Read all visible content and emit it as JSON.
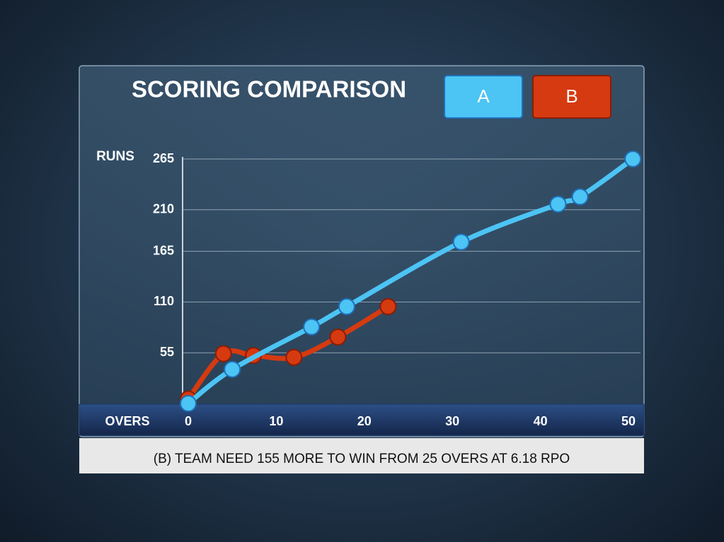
{
  "chart_data": {
    "type": "line",
    "title": "SCORING COMPARISON",
    "y_label": "RUNS",
    "x_label": "OVERS",
    "series": [
      {
        "name": "A",
        "color": "#4cc4f4",
        "x": [
          0,
          5,
          14,
          18,
          31,
          42,
          44.5,
          50.5
        ],
        "values": [
          0,
          37,
          83,
          105,
          175,
          216,
          224,
          265
        ]
      },
      {
        "name": "B",
        "color": "#d63a10",
        "x": [
          0,
          4,
          7.4,
          12,
          17,
          22.7
        ],
        "values": [
          5,
          54,
          52,
          50,
          72,
          105
        ]
      }
    ],
    "xlim": [
      0,
      51
    ],
    "xticks": [
      0,
      10,
      20,
      30,
      40,
      50
    ],
    "ylim": [
      0,
      265
    ],
    "yticks": [
      55,
      110,
      165,
      210,
      265
    ],
    "grid": true,
    "footer": "(B) TEAM NEED 155 MORE TO WIN FROM 25 OVERS AT 6.18 RPO"
  }
}
